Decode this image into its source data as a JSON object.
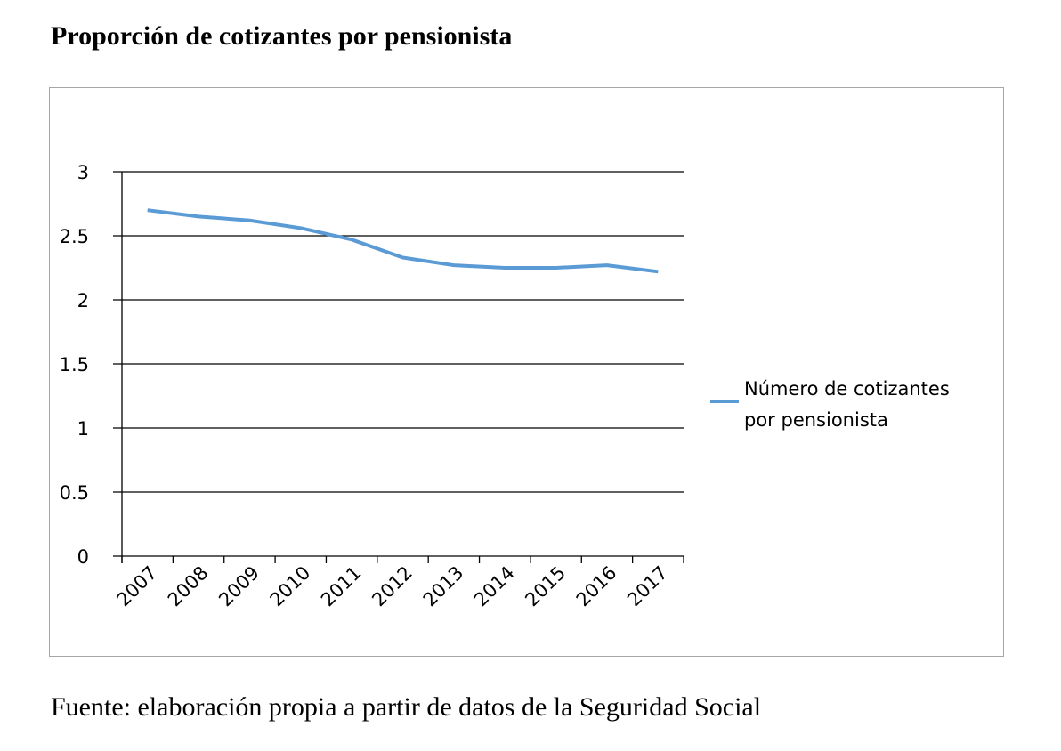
{
  "title": "Proporción de cotizantes por pensionista",
  "source": "Fuente: elaboración propia a partir de datos de la Seguridad Social",
  "chart_data": {
    "type": "line",
    "title": "",
    "xlabel": "",
    "ylabel": "",
    "categories": [
      "2007",
      "2008",
      "2009",
      "2010",
      "2011",
      "2012",
      "2013",
      "2014",
      "2015",
      "2016",
      "2017"
    ],
    "series": [
      {
        "name": "Número de cotizantes por pensionista",
        "values": [
          2.7,
          2.65,
          2.62,
          2.56,
          2.47,
          2.33,
          2.27,
          2.25,
          2.25,
          2.27,
          2.22
        ],
        "color": "#5b9bd5"
      }
    ],
    "yticks": [
      "0",
      "0.5",
      "1",
      "1.5",
      "2",
      "2.5",
      "3"
    ],
    "ylim": [
      0,
      3
    ],
    "grid": true,
    "legend": {
      "placement": "right",
      "lines": [
        "Número de cotizantes",
        "por pensionista"
      ]
    }
  }
}
